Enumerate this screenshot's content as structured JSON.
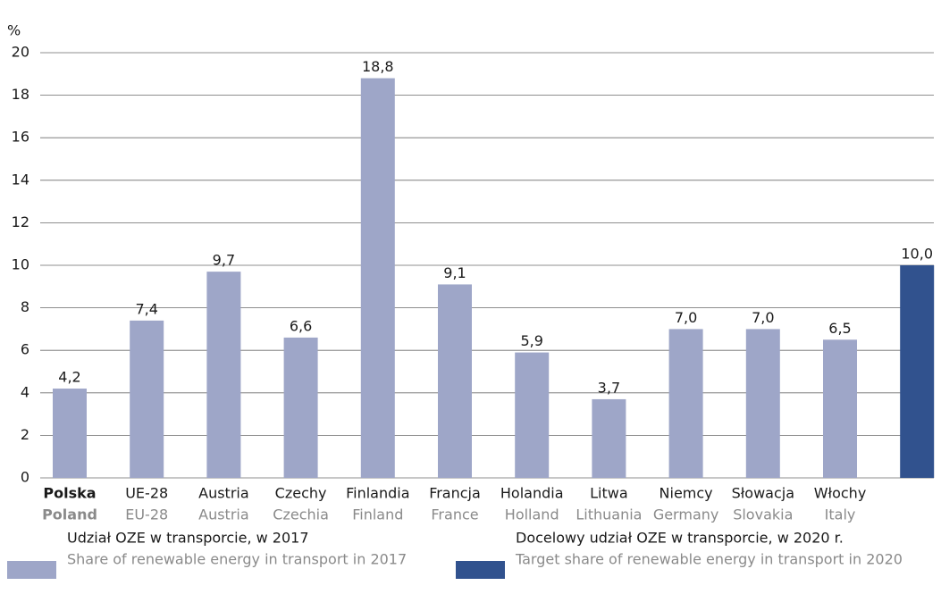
{
  "chart_data": {
    "type": "bar",
    "ylabel": "%",
    "categories": [
      "Polska",
      "UE-28",
      "Austria",
      "Czechy",
      "Finlandia",
      "Francja",
      "Holandia",
      "Litwa",
      "Niemcy",
      "Słowacja",
      "Włochy",
      null
    ],
    "categories_en": [
      "Poland",
      "EU-28",
      "Austria",
      "Czechia",
      "Finland",
      "France",
      "Holland",
      "Lithuania",
      "Germany",
      "Slovakia",
      "Italy",
      null
    ],
    "series": [
      {
        "name": "Udział OZE w transporcie, w 2017",
        "name_en": "Share of renewable energy in transport in 2017",
        "color": "#9ea6c8",
        "values": [
          4.2,
          7.4,
          9.7,
          6.6,
          18.8,
          9.1,
          5.9,
          3.7,
          7.0,
          7.0,
          6.5,
          null
        ],
        "value_labels": [
          "4,2",
          "7,4",
          "9,7",
          "6,6",
          "18,8",
          "9,1",
          "5,9",
          "3,7",
          "7,0",
          "7,0",
          "6,5",
          null
        ]
      },
      {
        "name": "Docelowy udział OZE w transporcie, w 2020 r.",
        "name_en": "Target share of renewable energy in transport in 2020",
        "color": "#31528e",
        "values": [
          null,
          null,
          null,
          null,
          null,
          null,
          null,
          null,
          null,
          null,
          null,
          10.0
        ],
        "value_labels": [
          null,
          null,
          null,
          null,
          null,
          null,
          null,
          null,
          null,
          null,
          null,
          "10,0"
        ]
      }
    ],
    "ylim": [
      0,
      20
    ],
    "yticks": [
      0,
      2,
      4,
      6,
      8,
      10,
      12,
      14,
      16,
      18,
      20
    ],
    "grid": true
  }
}
